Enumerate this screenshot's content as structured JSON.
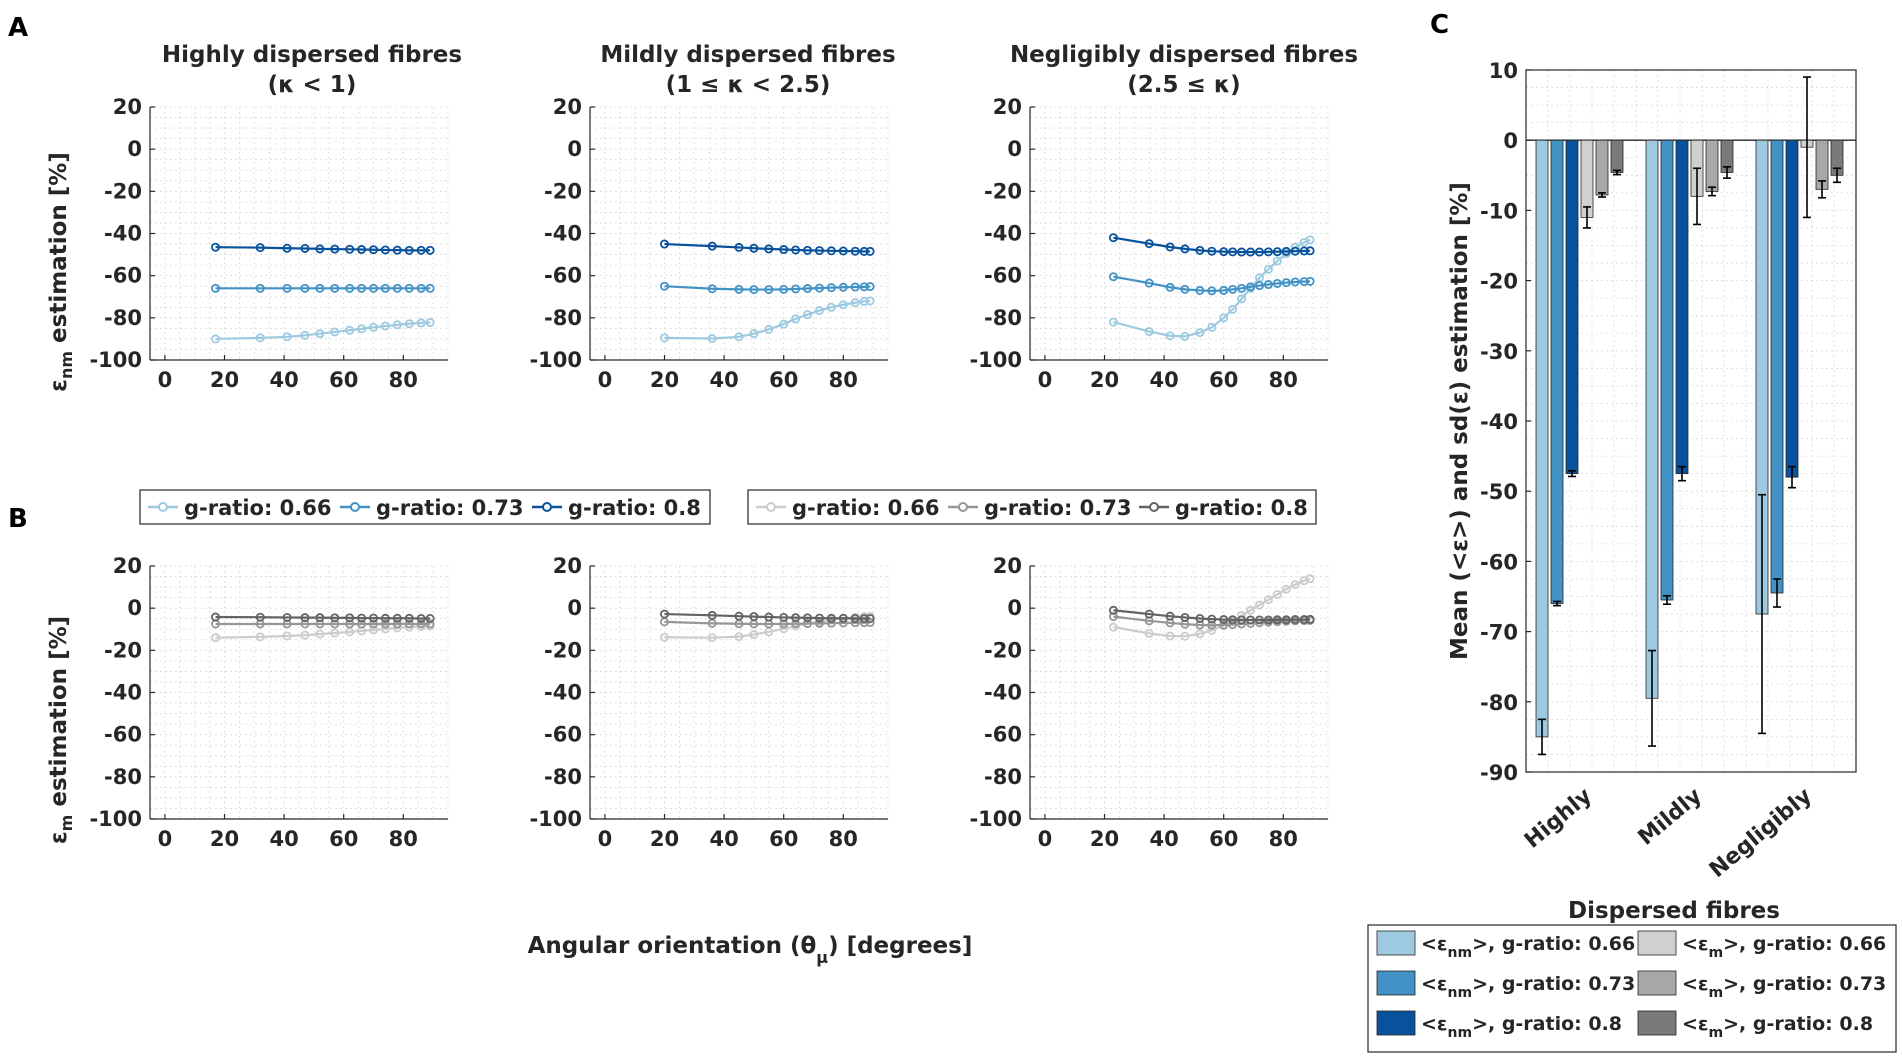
{
  "panel_labels": {
    "a": "A",
    "b": "B",
    "c": "C"
  },
  "titles": {
    "highly": [
      "Highly dispersed fibres",
      "(κ < 1)"
    ],
    "mildly": [
      "Mildly dispersed fibres",
      "(1 ≤ κ < 2.5)"
    ],
    "negligibly": [
      "Negligibly dispersed fibres",
      "(2.5 ≤ κ)"
    ]
  },
  "ylabel_nm": {
    "sym": "ε",
    "sub": "nm",
    "rest": " estimation [%]"
  },
  "ylabel_m": {
    "sym": "ε",
    "sub": "m",
    "rest": " estimation [%]"
  },
  "xlabel": {
    "pre": "Angular orientation (θ",
    "sub": "μ",
    "post": ") [degrees]"
  },
  "colors": {
    "blue_066": "#9ecae1",
    "blue_073": "#4292c6",
    "blue_080": "#08519c",
    "gray_066": "#cccccc",
    "gray_073": "#969696",
    "gray_080": "#636363",
    "grid": "#d9d9d9",
    "axis": "#262626"
  },
  "legend_a": [
    "g-ratio: 0.66",
    "g-ratio: 0.73",
    "g-ratio: 0.8"
  ],
  "legend_b": [
    "g-ratio: 0.66",
    "g-ratio: 0.73",
    "g-ratio: 0.8"
  ],
  "chart_data": [
    {
      "id": "A1",
      "type": "line",
      "panel": "A",
      "column": "highly",
      "ylabel": "ε_nm estimation [%]",
      "xlim": [
        -5,
        95
      ],
      "ylim": [
        -100,
        20
      ],
      "xticks": [
        0,
        20,
        40,
        60,
        80
      ],
      "yticks": [
        -100,
        -80,
        -60,
        -40,
        -20,
        0,
        20
      ],
      "series": [
        {
          "name": "g-ratio: 0.66",
          "x": [
            17,
            32,
            41,
            47,
            52,
            57,
            62,
            66,
            70,
            74,
            78,
            82,
            86,
            89
          ],
          "y": [
            -90,
            -89.5,
            -89,
            -88.3,
            -87.5,
            -86.7,
            -85.9,
            -85.2,
            -84.5,
            -83.9,
            -83.3,
            -82.8,
            -82.4,
            -82.2
          ]
        },
        {
          "name": "g-ratio: 0.73",
          "x": [
            17,
            32,
            41,
            47,
            52,
            57,
            62,
            66,
            70,
            74,
            78,
            82,
            86,
            89
          ],
          "y": [
            -66,
            -66,
            -66,
            -66,
            -66,
            -66,
            -66,
            -66,
            -66,
            -66,
            -66,
            -66,
            -66,
            -66
          ]
        },
        {
          "name": "g-ratio: 0.8",
          "x": [
            17,
            32,
            41,
            47,
            52,
            57,
            62,
            66,
            70,
            74,
            78,
            82,
            86,
            89
          ],
          "y": [
            -46.5,
            -46.7,
            -47,
            -47.1,
            -47.3,
            -47.4,
            -47.5,
            -47.6,
            -47.7,
            -47.8,
            -47.9,
            -48,
            -48,
            -48
          ]
        }
      ]
    },
    {
      "id": "A2",
      "type": "line",
      "panel": "A",
      "column": "mildly",
      "ylabel": "",
      "xlim": [
        -5,
        95
      ],
      "ylim": [
        -100,
        20
      ],
      "xticks": [
        0,
        20,
        40,
        60,
        80
      ],
      "yticks": [
        -100,
        -80,
        -60,
        -40,
        -20,
        0,
        20
      ],
      "series": [
        {
          "name": "g-ratio: 0.66",
          "x": [
            20,
            36,
            45,
            50,
            55,
            60,
            64,
            68,
            72,
            76,
            80,
            84,
            87,
            89
          ],
          "y": [
            -89.5,
            -89.8,
            -89,
            -87.5,
            -85.5,
            -83,
            -80.5,
            -78.5,
            -76.5,
            -75,
            -73.8,
            -72.8,
            -72.2,
            -72
          ]
        },
        {
          "name": "g-ratio: 0.73",
          "x": [
            20,
            36,
            45,
            50,
            55,
            60,
            64,
            68,
            72,
            76,
            80,
            84,
            87,
            89
          ],
          "y": [
            -65,
            -66.2,
            -66.5,
            -66.6,
            -66.6,
            -66.5,
            -66.3,
            -66.1,
            -65.9,
            -65.7,
            -65.5,
            -65.4,
            -65.3,
            -65.2
          ]
        },
        {
          "name": "g-ratio: 0.8",
          "x": [
            20,
            36,
            45,
            50,
            55,
            60,
            64,
            68,
            72,
            76,
            80,
            84,
            87,
            89
          ],
          "y": [
            -45,
            -46,
            -46.6,
            -47,
            -47.3,
            -47.6,
            -47.8,
            -48,
            -48.1,
            -48.2,
            -48.3,
            -48.4,
            -48.5,
            -48.5
          ]
        }
      ]
    },
    {
      "id": "A3",
      "type": "line",
      "panel": "A",
      "column": "negligibly",
      "ylabel": "",
      "xlim": [
        -5,
        95
      ],
      "ylim": [
        -100,
        20
      ],
      "xticks": [
        0,
        20,
        40,
        60,
        80
      ],
      "yticks": [
        -100,
        -80,
        -60,
        -40,
        -20,
        0,
        20
      ],
      "series": [
        {
          "name": "g-ratio: 0.66",
          "x": [
            23,
            35,
            42,
            47,
            52,
            56,
            60,
            63,
            66,
            69,
            72,
            75,
            78,
            81,
            84,
            87,
            89
          ],
          "y": [
            -82,
            -86.5,
            -88.5,
            -88.8,
            -87,
            -84.5,
            -80,
            -76,
            -71,
            -66,
            -61,
            -57,
            -53,
            -49.5,
            -46.5,
            -44.2,
            -43
          ]
        },
        {
          "name": "g-ratio: 0.73",
          "x": [
            23,
            35,
            42,
            47,
            52,
            56,
            60,
            63,
            66,
            69,
            72,
            75,
            78,
            81,
            84,
            87,
            89
          ],
          "y": [
            -60.5,
            -63.5,
            -65.5,
            -66.5,
            -67,
            -67.2,
            -67,
            -66.5,
            -66,
            -65.3,
            -64.7,
            -64.2,
            -63.7,
            -63.3,
            -63,
            -62.8,
            -62.7
          ]
        },
        {
          "name": "g-ratio: 0.8",
          "x": [
            23,
            35,
            42,
            47,
            52,
            56,
            60,
            63,
            66,
            69,
            72,
            75,
            78,
            81,
            84,
            87,
            89
          ],
          "y": [
            -42,
            -44.8,
            -46.4,
            -47.3,
            -48,
            -48.4,
            -48.6,
            -48.7,
            -48.8,
            -48.8,
            -48.8,
            -48.7,
            -48.6,
            -48.5,
            -48.4,
            -48.3,
            -48.2
          ]
        }
      ]
    },
    {
      "id": "B1",
      "type": "line",
      "panel": "B",
      "column": "highly",
      "ylabel": "ε_m estimation [%]",
      "xlim": [
        -5,
        95
      ],
      "ylim": [
        -100,
        20
      ],
      "xticks": [
        0,
        20,
        40,
        60,
        80
      ],
      "yticks": [
        -100,
        -80,
        -60,
        -40,
        -20,
        0,
        20
      ],
      "series": [
        {
          "name": "g-ratio: 0.66",
          "x": [
            17,
            32,
            41,
            47,
            52,
            57,
            62,
            66,
            70,
            74,
            78,
            82,
            86,
            89
          ],
          "y": [
            -14,
            -13.6,
            -13.2,
            -12.8,
            -12.3,
            -11.8,
            -11.3,
            -10.8,
            -10.3,
            -9.8,
            -9.4,
            -9,
            -8.7,
            -8.5
          ]
        },
        {
          "name": "g-ratio: 0.73",
          "x": [
            17,
            32,
            41,
            47,
            52,
            57,
            62,
            66,
            70,
            74,
            78,
            82,
            86,
            89
          ],
          "y": [
            -7.5,
            -7.5,
            -7.5,
            -7.5,
            -7.5,
            -7.5,
            -7.5,
            -7.5,
            -7.5,
            -7.5,
            -7.5,
            -7.5,
            -7.5,
            -7.5
          ]
        },
        {
          "name": "g-ratio: 0.8",
          "x": [
            17,
            32,
            41,
            47,
            52,
            57,
            62,
            66,
            70,
            74,
            78,
            82,
            86,
            89
          ],
          "y": [
            -4.2,
            -4.3,
            -4.4,
            -4.5,
            -4.5,
            -4.6,
            -4.6,
            -4.7,
            -4.7,
            -4.8,
            -4.8,
            -4.8,
            -4.9,
            -4.9
          ]
        }
      ]
    },
    {
      "id": "B2",
      "type": "line",
      "panel": "B",
      "column": "mildly",
      "ylabel": "",
      "xlim": [
        -5,
        95
      ],
      "ylim": [
        -100,
        20
      ],
      "xticks": [
        0,
        20,
        40,
        60,
        80
      ],
      "yticks": [
        -100,
        -80,
        -60,
        -40,
        -20,
        0,
        20
      ],
      "series": [
        {
          "name": "g-ratio: 0.66",
          "x": [
            20,
            36,
            45,
            50,
            55,
            60,
            64,
            68,
            72,
            76,
            80,
            84,
            87,
            89
          ],
          "y": [
            -13.8,
            -14,
            -13.5,
            -12.5,
            -11.2,
            -9.8,
            -8.5,
            -7.3,
            -6.3,
            -5.5,
            -4.8,
            -4.3,
            -4,
            -3.9
          ]
        },
        {
          "name": "g-ratio: 0.73",
          "x": [
            20,
            36,
            45,
            50,
            55,
            60,
            64,
            68,
            72,
            76,
            80,
            84,
            87,
            89
          ],
          "y": [
            -6.5,
            -7.2,
            -7.4,
            -7.5,
            -7.5,
            -7.5,
            -7.4,
            -7.3,
            -7.2,
            -7.1,
            -7,
            -6.9,
            -6.9,
            -6.8
          ]
        },
        {
          "name": "g-ratio: 0.8",
          "x": [
            20,
            36,
            45,
            50,
            55,
            60,
            64,
            68,
            72,
            76,
            80,
            84,
            87,
            89
          ],
          "y": [
            -2.8,
            -3.4,
            -3.8,
            -4,
            -4.2,
            -4.4,
            -4.5,
            -4.6,
            -4.7,
            -4.8,
            -4.8,
            -4.9,
            -4.9,
            -4.9
          ]
        }
      ]
    },
    {
      "id": "B3",
      "type": "line",
      "panel": "B",
      "column": "negligibly",
      "ylabel": "",
      "xlim": [
        -5,
        95
      ],
      "ylim": [
        -100,
        20
      ],
      "xticks": [
        0,
        20,
        40,
        60,
        80
      ],
      "yticks": [
        -100,
        -80,
        -60,
        -40,
        -20,
        0,
        20
      ],
      "series": [
        {
          "name": "g-ratio: 0.66",
          "x": [
            23,
            35,
            42,
            47,
            52,
            56,
            60,
            63,
            66,
            69,
            72,
            75,
            78,
            81,
            84,
            87,
            89
          ],
          "y": [
            -9,
            -12,
            -13.2,
            -13.3,
            -12.2,
            -10.5,
            -8.2,
            -6,
            -3.5,
            -1,
            1.5,
            4,
            6.5,
            9,
            11.2,
            13,
            14
          ]
        },
        {
          "name": "g-ratio: 0.73",
          "x": [
            23,
            35,
            42,
            47,
            52,
            56,
            60,
            63,
            66,
            69,
            72,
            75,
            78,
            81,
            84,
            87,
            89
          ],
          "y": [
            -4,
            -6,
            -7,
            -7.6,
            -8,
            -8.1,
            -8,
            -7.8,
            -7.5,
            -7.2,
            -6.9,
            -6.6,
            -6.4,
            -6.2,
            -6,
            -5.9,
            -5.8
          ]
        },
        {
          "name": "g-ratio: 0.8",
          "x": [
            23,
            35,
            42,
            47,
            52,
            56,
            60,
            63,
            66,
            69,
            72,
            75,
            78,
            81,
            84,
            87,
            89
          ],
          "y": [
            -1,
            -2.8,
            -3.8,
            -4.4,
            -4.9,
            -5.2,
            -5.4,
            -5.5,
            -5.6,
            -5.6,
            -5.6,
            -5.6,
            -5.5,
            -5.5,
            -5.4,
            -5.4,
            -5.3
          ]
        }
      ]
    },
    {
      "id": "C",
      "type": "bar",
      "panel": "C",
      "title": "",
      "xlabel": "Dispersed fibres",
      "ylabel": "Mean (<ε>) and sd(ε) estimation [%]",
      "categories": [
        "Highly",
        "Mildly",
        "Negligibly"
      ],
      "ylim": [
        -90,
        10
      ],
      "yticks": [
        -90,
        -80,
        -70,
        -60,
        -50,
        -40,
        -30,
        -20,
        -10,
        0,
        10
      ],
      "series": [
        {
          "name": "<ε_nm>, g-ratio: 0.66",
          "values": [
            -85,
            -79.5,
            -67.5
          ],
          "sd": [
            2.5,
            6.8,
            17
          ]
        },
        {
          "name": "<ε_nm>, g-ratio: 0.73",
          "values": [
            -66,
            -65.5,
            -64.5
          ],
          "sd": [
            0.3,
            0.6,
            2
          ]
        },
        {
          "name": "<ε_nm>, g-ratio: 0.8",
          "values": [
            -47.5,
            -47.5,
            -48
          ],
          "sd": [
            0.4,
            1,
            1.5
          ]
        },
        {
          "name": "<ε_m>, g-ratio: 0.66",
          "values": [
            -11,
            -8,
            -1
          ],
          "sd": [
            1.5,
            4,
            10
          ]
        },
        {
          "name": "<ε_m>, g-ratio: 0.73",
          "values": [
            -7.8,
            -7.3,
            -7
          ],
          "sd": [
            0.3,
            0.6,
            1.2
          ]
        },
        {
          "name": "<ε_m>, g-ratio: 0.8",
          "values": [
            -4.6,
            -4.6,
            -5
          ],
          "sd": [
            0.3,
            0.8,
            1
          ]
        }
      ],
      "legend": [
        {
          "sym": "ε",
          "sub": "nm",
          "text": ">, g-ratio: 0.66"
        },
        {
          "sym": "ε",
          "sub": "nm",
          "text": ">, g-ratio: 0.73"
        },
        {
          "sym": "ε",
          "sub": "nm",
          "text": ">, g-ratio: 0.8"
        },
        {
          "sym": "ε",
          "sub": "m",
          "text": ">, g-ratio: 0.66"
        },
        {
          "sym": "ε",
          "sub": "m",
          "text": ">, g-ratio: 0.73"
        },
        {
          "sym": "ε",
          "sub": "m",
          "text": ">, g-ratio: 0.8"
        }
      ]
    }
  ]
}
